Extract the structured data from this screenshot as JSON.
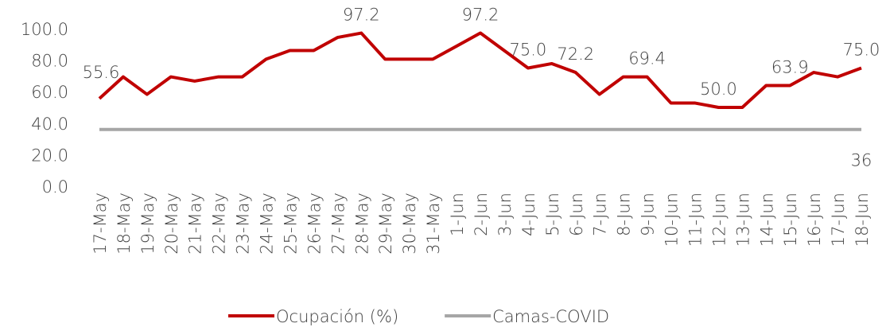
{
  "chart_data": {
    "type": "line",
    "categories": [
      "17-May",
      "18-May",
      "19-May",
      "20-May",
      "21-May",
      "22-May",
      "23-May",
      "24-May",
      "25-May",
      "26-May",
      "27-May",
      "28-May",
      "29-May",
      "30-May",
      "31-May",
      "1-Jun",
      "2-Jun",
      "3-Jun",
      "4-Jun",
      "5-Jun",
      "6-Jun",
      "7-Jun",
      "8-Jun",
      "9-Jun",
      "10-Jun",
      "11-Jun",
      "12-Jun",
      "13-Jun",
      "14-Jun",
      "15-Jun",
      "16-Jun",
      "17-Jun",
      "18-Jun"
    ],
    "series": [
      {
        "name": "Ocupación (%)",
        "color": "#c00000",
        "values": [
          55.6,
          69.4,
          58.3,
          69.4,
          66.7,
          69.4,
          69.4,
          80.6,
          86.1,
          86.1,
          94.4,
          97.2,
          80.6,
          80.6,
          80.6,
          88.9,
          97.2,
          86.1,
          75.0,
          77.8,
          72.2,
          58.3,
          69.4,
          69.4,
          52.8,
          52.8,
          50.0,
          50.0,
          63.9,
          63.9,
          72.2,
          69.4,
          75.0
        ],
        "value_labels": [
          "55.6",
          null,
          null,
          null,
          null,
          null,
          null,
          null,
          null,
          null,
          null,
          "97.2",
          null,
          null,
          null,
          null,
          "97.2",
          null,
          "75.0",
          null,
          "72.2",
          null,
          null,
          "69.4",
          null,
          null,
          "50.0",
          null,
          null,
          "63.9",
          null,
          null,
          "75.0"
        ]
      },
      {
        "name": "Camas-COVID",
        "color": "#a6a6a6",
        "values": [
          36,
          36,
          36,
          36,
          36,
          36,
          36,
          36,
          36,
          36,
          36,
          36,
          36,
          36,
          36,
          36,
          36,
          36,
          36,
          36,
          36,
          36,
          36,
          36,
          36,
          36,
          36,
          36,
          36,
          36,
          36,
          36,
          36
        ],
        "value_labels": [
          null,
          null,
          null,
          null,
          null,
          null,
          null,
          null,
          null,
          null,
          null,
          null,
          null,
          null,
          null,
          null,
          null,
          null,
          null,
          null,
          null,
          null,
          null,
          null,
          null,
          null,
          null,
          null,
          null,
          null,
          null,
          null,
          "36"
        ]
      }
    ],
    "ylim": [
      0,
      100
    ],
    "yticks": [
      {
        "value": 0,
        "label": "0.0"
      },
      {
        "value": 20,
        "label": "20.0"
      },
      {
        "value": 40,
        "label": "40.0"
      },
      {
        "value": 60,
        "label": "60.0"
      },
      {
        "value": 80,
        "label": "80.0"
      },
      {
        "value": 100,
        "label": "100.0"
      }
    ],
    "grid": false,
    "legend": "bottom"
  }
}
